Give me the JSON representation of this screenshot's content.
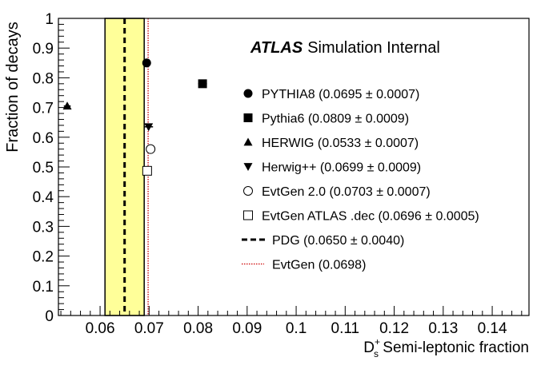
{
  "chart_data": {
    "type": "scatter",
    "title": "",
    "experiment": "ATLAS",
    "experiment_tag": "Simulation Internal",
    "xlabel": {
      "main": "D",
      "sub": "s",
      "sup": "+",
      "rest": " Semi-leptonic fraction"
    },
    "ylabel": "Fraction of decays",
    "xlim": [
      0.0515,
      0.1475
    ],
    "ylim": [
      0,
      1
    ],
    "x_ticks": [
      {
        "value": 0.06,
        "label": "0.06"
      },
      {
        "value": 0.07,
        "label": "0.07"
      },
      {
        "value": 0.08,
        "label": "0.08"
      },
      {
        "value": 0.09,
        "label": "0.09"
      },
      {
        "value": 0.1,
        "label": "0.1"
      },
      {
        "value": 0.11,
        "label": "0.11"
      },
      {
        "value": 0.12,
        "label": "0.12"
      },
      {
        "value": 0.13,
        "label": "0.13"
      },
      {
        "value": 0.14,
        "label": "0.14"
      }
    ],
    "y_ticks": [
      {
        "value": 0,
        "label": "0"
      },
      {
        "value": 0.1,
        "label": "0.1"
      },
      {
        "value": 0.2,
        "label": "0.2"
      },
      {
        "value": 0.3,
        "label": "0.3"
      },
      {
        "value": 0.4,
        "label": "0.4"
      },
      {
        "value": 0.5,
        "label": "0.5"
      },
      {
        "value": 0.6,
        "label": "0.6"
      },
      {
        "value": 0.7,
        "label": "0.7"
      },
      {
        "value": 0.8,
        "label": "0.8"
      },
      {
        "value": 0.9,
        "label": "0.9"
      },
      {
        "value": 1,
        "label": "1"
      }
    ],
    "series": [
      {
        "name": "PYTHIA8",
        "marker": "circle-filled",
        "x": 0.0695,
        "x_err": 0.0007,
        "y": 0.85,
        "legend": "PYTHIA8 (0.0695 ± 0.0007)"
      },
      {
        "name": "Pythia6",
        "marker": "square-filled",
        "x": 0.0809,
        "x_err": 0.0009,
        "y": 0.78,
        "legend": "Pythia6 (0.0809 ± 0.0009)"
      },
      {
        "name": "HERWIG",
        "marker": "triangle-up-filled",
        "x": 0.0533,
        "x_err": 0.0007,
        "y": 0.705,
        "legend": "HERWIG (0.0533 ± 0.0007)"
      },
      {
        "name": "Herwig++",
        "marker": "triangle-down-filled",
        "x": 0.0699,
        "x_err": 0.0009,
        "y": 0.635,
        "legend": "Herwig++ (0.0699 ± 0.0009)"
      },
      {
        "name": "EvtGen 2.0",
        "marker": "circle-open",
        "x": 0.0703,
        "x_err": 0.0007,
        "y": 0.56,
        "legend": "EvtGen 2.0 (0.0703 ± 0.0007)"
      },
      {
        "name": "EvtGen ATLAS .dec",
        "marker": "square-open",
        "x": 0.0696,
        "x_err": 0.0005,
        "y": 0.487,
        "legend": "EvtGen ATLAS .dec (0.0696 ± 0.0005)"
      }
    ],
    "reference_lines": [
      {
        "name": "PDG",
        "value": 0.065,
        "band": [
          0.061,
          0.069
        ],
        "style": "dashed",
        "color": "#000000",
        "band_color": "#ffff99",
        "legend": "PDG (0.0650 ± 0.0040)"
      },
      {
        "name": "EvtGen",
        "value": 0.0698,
        "style": "dotted",
        "color": "#cc0000",
        "legend": "EvtGen (0.0698)"
      }
    ],
    "legend_position": "right"
  }
}
